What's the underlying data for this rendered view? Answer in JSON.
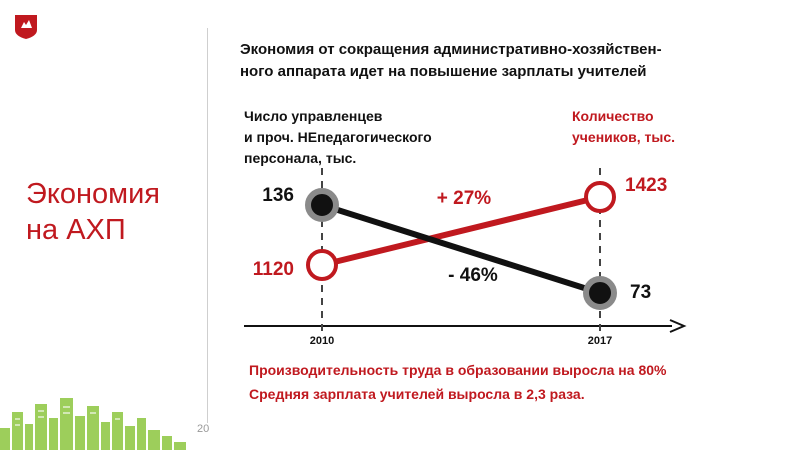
{
  "slide": {
    "section_title": [
      "Экономия",
      "на АХП"
    ],
    "headline": [
      "Экономия от сокращения административно-хозяйствен-",
      "ного аппарата идет на повышение зарплаты учителей"
    ],
    "page_number": "20"
  },
  "chart_data": {
    "type": "line",
    "x": [
      "2010",
      "2017"
    ],
    "series": [
      {
        "name": [
          "Число управленцев",
          "и проч. НЕпедагогического",
          "персонала, тыс."
        ],
        "values": [
          136,
          73
        ],
        "labels": [
          "136",
          "73"
        ],
        "change_label": "- 46%",
        "color": "#111111",
        "marker_fill": "#111111",
        "marker_ring": "#8a8a8a"
      },
      {
        "name": [
          "Количество",
          "учеников, тыс."
        ],
        "values": [
          1120,
          1423
        ],
        "labels": [
          "1120",
          "1423"
        ],
        "change_label": "+ 27%",
        "color": "#c0191f",
        "marker_fill": "#ffffff",
        "marker_ring": "#c0191f"
      }
    ]
  },
  "footer": {
    "lines": [
      "Производительность труда в образовании выросла на 80%",
      "Средняя зарплата учителей выросла в 2,3 раза."
    ]
  },
  "colors": {
    "accent": "#c0191f",
    "text": "#111111",
    "gray": "#8a8a8a",
    "skyline": "#8dc63f"
  }
}
